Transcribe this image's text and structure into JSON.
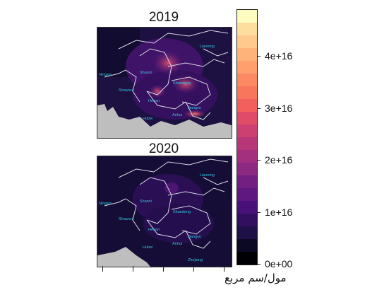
{
  "maps": [
    {
      "title": "2019",
      "provinces": [
        "Liaoning",
        "Shanxi",
        "Ningxia",
        "Shaanxi",
        "Henan",
        "Shandong",
        "Jiangsu",
        "Anhui",
        "Hubei"
      ]
    },
    {
      "title": "2020",
      "provinces": [
        "Liaoning",
        "Shanxi",
        "Ningxia",
        "Shaanxi",
        "Henan",
        "Shandong",
        "Jiangsu",
        "Anhui",
        "Hubei",
        "Zhejiang"
      ]
    }
  ],
  "colorbar": {
    "ticks": [
      "4e+16",
      "3e+16",
      "2e+16",
      "1e+16",
      "0e+00"
    ],
    "tick_values": [
      4e+16,
      3e+16,
      2e+16,
      1e+16,
      0
    ],
    "min": 0,
    "max": 4.9e+16,
    "colors": [
      "#000004",
      "#0b0924",
      "#1d1147",
      "#330f5f",
      "#4a1079",
      "#5f187f",
      "#721f81",
      "#8c2981",
      "#a3307e",
      "#b73779",
      "#cc3f71",
      "#e04b68",
      "#f1605d",
      "#f8765c",
      "#fc8961",
      "#fe9f6d",
      "#feb37b",
      "#fec98d",
      "#fdde9f",
      "#fcfdbf"
    ],
    "unit_label": "مول/سم مربع"
  },
  "x_axis_tick_count": 5
}
